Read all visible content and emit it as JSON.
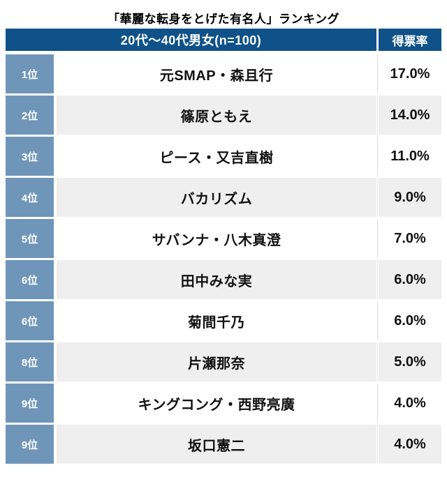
{
  "title": "「華麗な転身をとげた有名人」ランキング",
  "table": {
    "header": {
      "group_label": "20代〜40代男女(n=100)",
      "value_label": "得票率"
    },
    "rows": [
      {
        "rank": "1位",
        "name": "元SMAP・森且行",
        "value": "17.0%"
      },
      {
        "rank": "2位",
        "name": "篠原ともえ",
        "value": "14.0%"
      },
      {
        "rank": "3位",
        "name": "ピース・又吉直樹",
        "value": "11.0%"
      },
      {
        "rank": "4位",
        "name": "バカリズム",
        "value": "9.0%"
      },
      {
        "rank": "5位",
        "name": "サバンナ・八木真澄",
        "value": "7.0%"
      },
      {
        "rank": "6位",
        "name": "田中みな実",
        "value": "6.0%"
      },
      {
        "rank": "6位",
        "name": "菊間千乃",
        "value": "6.0%"
      },
      {
        "rank": "8位",
        "name": "片瀬那奈",
        "value": "5.0%"
      },
      {
        "rank": "9位",
        "name": "キングコング・西野亮廣",
        "value": "4.0%"
      },
      {
        "rank": "9位",
        "name": "坂口憲二",
        "value": "4.0%"
      }
    ],
    "colors": {
      "header_bg": "#0f5289",
      "rank_bg": "#6f96b9",
      "row_alt_bg": "#efefef",
      "header_text": "#ffffff",
      "body_text": "#111111"
    }
  },
  "chart_data": {
    "type": "table",
    "title": "「華麗な転身をとげた有名人」ランキング",
    "group_header": "20代〜40代男女(n=100)",
    "value_header": "得票率",
    "ranks": [
      "1位",
      "2位",
      "3位",
      "4位",
      "5位",
      "6位",
      "6位",
      "8位",
      "9位",
      "9位"
    ],
    "names": [
      "元SMAP・森且行",
      "篠原ともえ",
      "ピース・又吉直樹",
      "バカリズム",
      "サバンナ・八木真澄",
      "田中みな実",
      "菊間千乃",
      "片瀬那奈",
      "キングコング・西野亮廣",
      "坂口憲二"
    ],
    "values_percent": [
      17.0,
      14.0,
      11.0,
      9.0,
      7.0,
      6.0,
      6.0,
      5.0,
      4.0,
      4.0
    ]
  }
}
